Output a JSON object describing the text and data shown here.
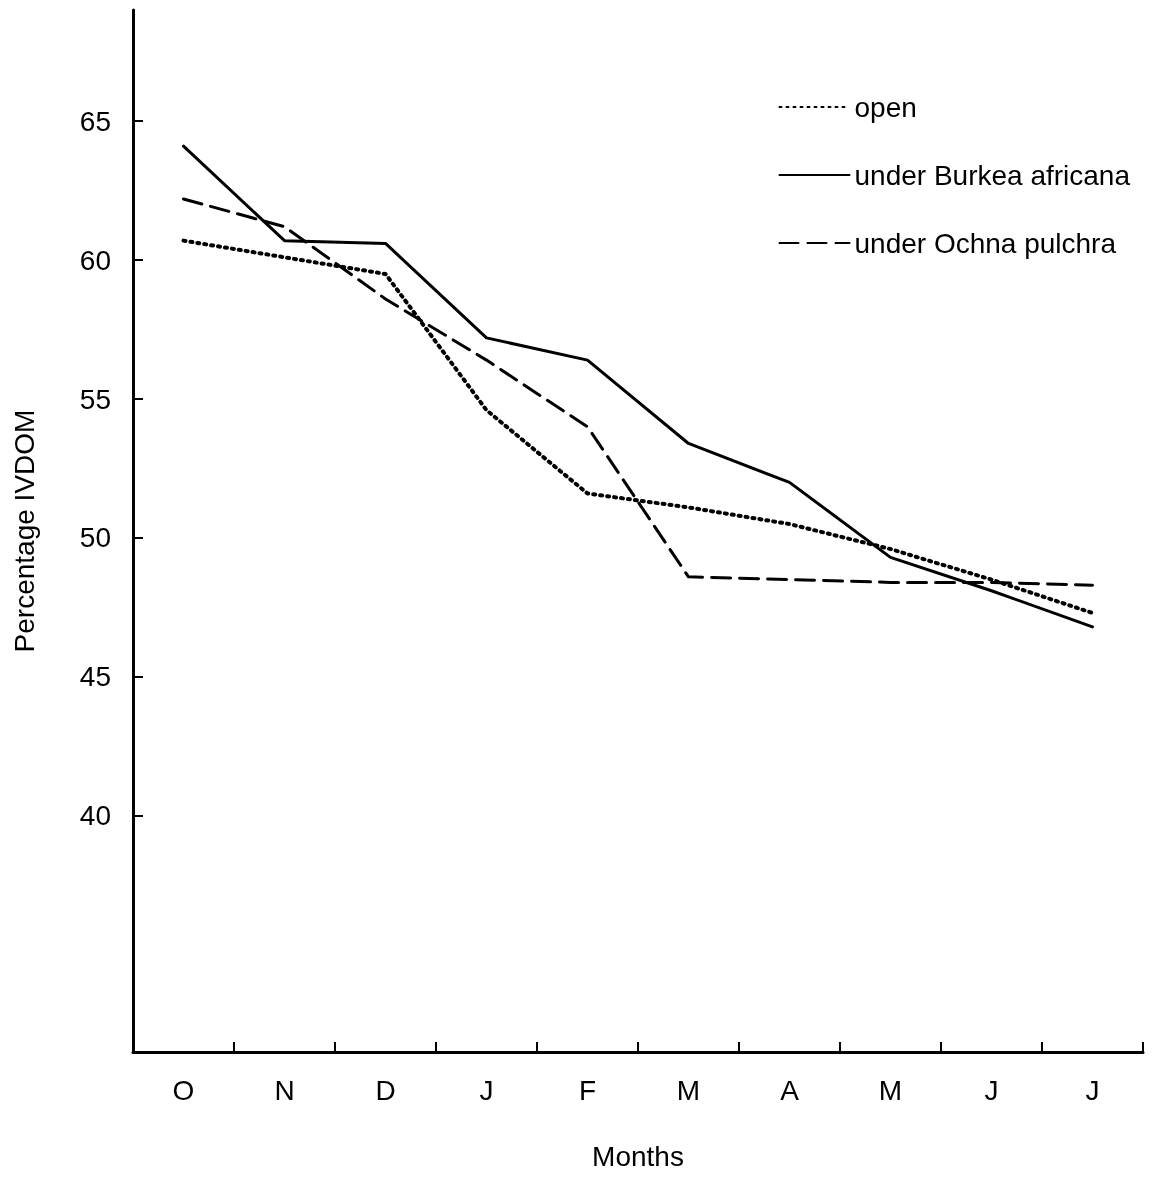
{
  "chart_data": {
    "type": "line",
    "xlabel": "Months",
    "ylabel": "Percentage IVDOM",
    "categories": [
      "O",
      "N",
      "D",
      "J",
      "F",
      "M",
      "A",
      "M",
      "J",
      "J"
    ],
    "ylim": [
      31.5,
      69
    ],
    "yticks": [
      40,
      45,
      50,
      55,
      60,
      65
    ],
    "legend": "top right",
    "marker": "none",
    "series": [
      {
        "name": "open",
        "color": "#000000",
        "line_style": "dotted",
        "values": [
          60.7,
          60.1,
          59.5,
          54.6,
          51.6,
          51.1,
          50.5,
          49.6,
          48.5,
          47.3
        ]
      },
      {
        "name": "under Burkea africana",
        "color": "#000000",
        "line_style": "solid",
        "values": [
          64.1,
          60.7,
          60.6,
          57.2,
          56.4,
          53.4,
          52.0,
          49.3,
          48.1,
          46.8
        ]
      },
      {
        "name": "under Ochna pulchra",
        "color": "#000000",
        "line_style": "dashed",
        "values": [
          62.2,
          61.2,
          58.6,
          56.4,
          54.0,
          48.6,
          48.5,
          48.4,
          48.4,
          48.3
        ]
      }
    ]
  }
}
